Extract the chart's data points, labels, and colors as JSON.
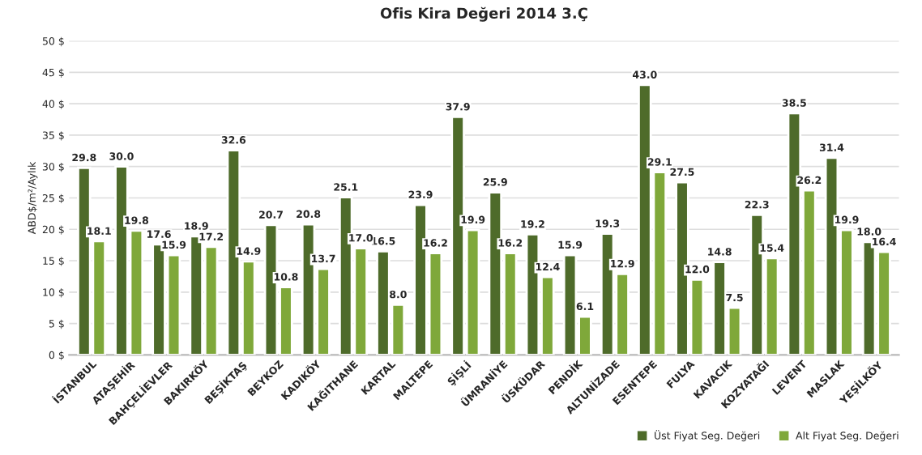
{
  "chart_data": {
    "type": "bar",
    "title": "Ofis Kira Değeri 2014 3.Ç",
    "ylabel": "ABD$/m²/Aylık",
    "categories": [
      "İSTANBUL",
      "ATAŞEHİR",
      "BAHÇELİEVLER",
      "BAKIRKÖY",
      "BEŞİKTAŞ",
      "BEYKOZ",
      "KADIKÖY",
      "KAĞITHANE",
      "KARTAL",
      "MALTEPE",
      "ŞİŞLİ",
      "ÜMRANİYE",
      "ÜSKÜDAR",
      "PENDİK",
      "ALTUNİZADE",
      "ESENTEPE",
      "FULYA",
      "KAVACIK",
      "KOZYATAĞI",
      "LEVENT",
      "MASLAK",
      "YEŞİLKÖY"
    ],
    "series": [
      {
        "name": "Üst Fiyat Seg. Değeri",
        "color": "#4e6b2a",
        "values": [
          29.8,
          30.0,
          17.6,
          18.9,
          32.6,
          20.7,
          20.8,
          25.1,
          16.5,
          23.9,
          37.9,
          25.9,
          19.2,
          15.9,
          19.3,
          43.0,
          27.5,
          14.8,
          22.3,
          38.5,
          31.4,
          18.0
        ],
        "value_labels": [
          "29.8",
          "30.0",
          "17.6",
          "18.9",
          "32.6",
          "20.7",
          "20.8",
          "25.1",
          "16.5",
          "23.9",
          "37.9",
          "25.9",
          "19.2",
          "15.9",
          "19.3",
          "43.0",
          "27.5",
          "14.8",
          "22.3",
          "38.5",
          "31.4",
          "18.0"
        ]
      },
      {
        "name": "Alt Fiyat Seg. Değeri",
        "color": "#7fa83a",
        "values": [
          18.1,
          19.8,
          15.9,
          17.2,
          14.9,
          10.8,
          13.7,
          17.0,
          8.0,
          16.2,
          19.9,
          16.2,
          12.4,
          6.1,
          12.9,
          29.1,
          12.0,
          7.5,
          15.4,
          26.2,
          19.9,
          16.4
        ],
        "value_labels": [
          "18.1",
          "19.8",
          "15.9",
          "17.2",
          "14.9",
          "10.8",
          "13.7",
          "17.0",
          "8.0",
          "16.2",
          "19.9",
          "16.2",
          "12.4",
          "6.1",
          "12.9",
          "29.1",
          "12.0",
          "7.5",
          "15.4",
          "26.2",
          "19.9",
          "16.4"
        ]
      }
    ],
    "ylim": [
      0,
      50
    ],
    "yticks": [
      {
        "value": 0,
        "label": "0 $"
      },
      {
        "value": 5,
        "label": "5 $"
      },
      {
        "value": 10,
        "label": "10 $"
      },
      {
        "value": 15,
        "label": "15 $"
      },
      {
        "value": 20,
        "label": "20 $"
      },
      {
        "value": 25,
        "label": "25 $"
      },
      {
        "value": 30,
        "label": "30 $"
      },
      {
        "value": 35,
        "label": "35 $"
      },
      {
        "value": 40,
        "label": "40 $"
      },
      {
        "value": 45,
        "label": "45 $"
      },
      {
        "value": 50,
        "label": "50 $"
      }
    ],
    "grid": "y",
    "legend": "bottom right"
  }
}
